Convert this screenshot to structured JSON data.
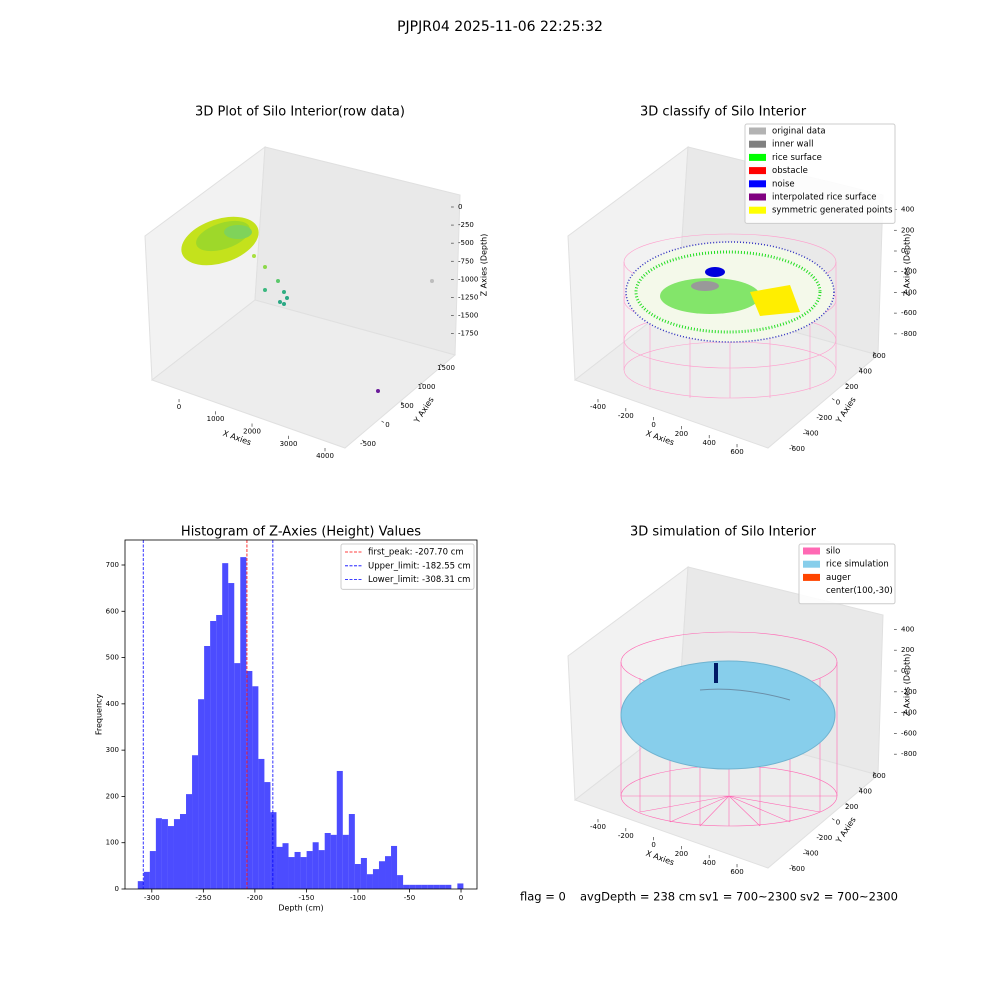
{
  "title": "PJPJR04 2025-11-06 22:25:32",
  "chart_data": [
    {
      "type": "scatter3d",
      "title": "3D Plot of Silo Interior(row data)",
      "xlabel": "X Axies",
      "ylabel": "Y Axies",
      "zlabel": "Z Axies (Depth)",
      "xlim": [
        -700,
        4600
      ],
      "xticks": [
        0,
        1000,
        2000,
        3000,
        4000
      ],
      "ylim": [
        -700,
        1800
      ],
      "yticks": [
        -500,
        0,
        500,
        1000,
        1500
      ],
      "zlim": [
        -1850,
        80
      ],
      "zticks": [
        0,
        -250,
        -500,
        -750,
        -1000,
        -1250,
        -1500,
        -1750
      ]
    },
    {
      "type": "scatter3d",
      "title": "3D classify of Silo Interior",
      "xlabel": "X Axies",
      "ylabel": "Y Axies",
      "zlabel": "Z Axies (Depth)",
      "xlim": [
        -520,
        720
      ],
      "xticks": [
        -400,
        -200,
        0,
        200,
        400,
        600
      ],
      "ylim": [
        -720,
        720
      ],
      "yticks": [
        -600,
        -400,
        -200,
        0,
        200,
        400,
        600
      ],
      "zlim": [
        -900,
        480
      ],
      "zticks": [
        400,
        200,
        0,
        -200,
        -400,
        -600,
        -800
      ],
      "legend": [
        {
          "name": "original data",
          "color": "#b3b3b3"
        },
        {
          "name": "inner wall",
          "color": "#808080"
        },
        {
          "name": "rice surface",
          "color": "#00ff00"
        },
        {
          "name": "obstacle",
          "color": "#ff0000"
        },
        {
          "name": "noise",
          "color": "#0000ff"
        },
        {
          "name": "interpolated rice surface",
          "color": "#800080"
        },
        {
          "name": "symmetric generated points",
          "color": "#ffff00"
        }
      ]
    },
    {
      "type": "histogram",
      "title": "Histogram of Z-Axies (Height) Values",
      "xlabel": "Depth (cm)",
      "ylabel": "Frequency",
      "bins": [
        -313.6,
        -307.75,
        -301.9,
        -296.05,
        -290.2,
        -284.35,
        -278.5,
        -272.65,
        -266.8,
        -260.95,
        -255.1,
        -249.25,
        -243.4,
        -237.55,
        -231.7,
        -225.85,
        -220.0,
        -214.15,
        -208.3,
        -202.45,
        -196.6,
        -190.75,
        -184.9,
        -179.05,
        -173.2,
        -167.35,
        -161.5,
        -155.65,
        -149.8,
        -143.95,
        -138.1,
        -132.25,
        -126.4,
        -120.55,
        -114.7,
        -108.85,
        -103.0,
        -97.15,
        -91.3,
        -85.45,
        -79.6,
        -73.75,
        -67.9,
        -62.05,
        -56.2,
        -50.35,
        -44.5,
        -38.65,
        -32.8,
        -26.95,
        -21.1,
        -15.25,
        -9.4,
        -3.55,
        2.3
      ],
      "values": [
        17,
        37,
        82,
        153,
        151,
        136,
        151,
        162,
        205,
        289,
        410,
        525,
        579,
        592,
        704,
        661,
        488,
        717,
        471,
        438,
        281,
        231,
        166,
        91,
        99,
        69,
        80,
        69,
        82,
        101,
        84,
        121,
        117,
        255,
        117,
        162,
        54,
        67,
        32,
        43,
        60,
        71,
        93,
        30,
        9,
        9,
        9,
        9,
        9,
        9,
        9,
        9,
        0,
        12
      ],
      "color": "#0000ff",
      "xlim": [
        -326,
        15.5
      ],
      "xticks": [
        -300,
        -250,
        -200,
        -150,
        -100,
        -50,
        0
      ],
      "ylim": [
        0,
        754
      ],
      "yticks": [
        0,
        100,
        200,
        300,
        400,
        500,
        600,
        700
      ],
      "vlines": [
        {
          "name": "first_peak: -207.70 cm",
          "value": -207.7,
          "color": "#ff0000"
        },
        {
          "name": "Upper_limit: -182.55 cm",
          "value": -182.55,
          "color": "#0000ff"
        },
        {
          "name": "Lower_limit: -308.31 cm",
          "value": -308.31,
          "color": "#0000ff"
        }
      ],
      "legend_position": "upper right"
    },
    {
      "type": "scatter3d",
      "title": "3D simulation of Silo Interior",
      "xlabel": "X Axies",
      "ylabel": "Y Axies",
      "zlabel": "Z Axies (Depth)",
      "xlim": [
        -520,
        720
      ],
      "xticks": [
        -400,
        -200,
        0,
        200,
        400,
        600
      ],
      "ylim": [
        -720,
        720
      ],
      "yticks": [
        -600,
        -400,
        -200,
        0,
        200,
        400,
        600
      ],
      "zlim": [
        -900,
        480
      ],
      "zticks": [
        400,
        200,
        0,
        -200,
        -400,
        -600,
        -800
      ],
      "legend": [
        {
          "name": "silo",
          "color": "#ff69b4"
        },
        {
          "name": "rice simulation",
          "color": "#87ceeb"
        },
        {
          "name": "auger",
          "color": "#ff4500"
        },
        {
          "name": "center(100,-30)"
        }
      ]
    }
  ],
  "annotations": [
    "flag = 0",
    "avgDepth = 238 cm",
    "sv1 = 700~2300",
    "sv2 = 700~2300"
  ]
}
